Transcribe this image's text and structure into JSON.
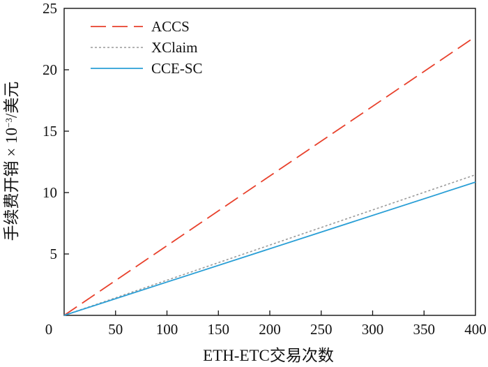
{
  "chart_data": {
    "type": "line",
    "title": "",
    "xlabel": "ETH-ETC交易次数",
    "ylabel_main": "手续费开销 × 10",
    "ylabel_exp": "−3",
    "ylabel_unit": "/美元",
    "xlim": [
      0,
      400
    ],
    "ylim": [
      0,
      25
    ],
    "xticks": [
      0,
      50,
      100,
      150,
      200,
      250,
      300,
      350,
      400
    ],
    "yticks": [
      5,
      10,
      15,
      20,
      25
    ],
    "grid": false,
    "legend_position": "top-left",
    "series": [
      {
        "name": "ACCS",
        "x": [
          0,
          400
        ],
        "y": [
          0,
          22.7
        ],
        "color": "#e8412c",
        "style": "dashed-long"
      },
      {
        "name": "XClaim",
        "x": [
          0,
          400
        ],
        "y": [
          0,
          11.45
        ],
        "color": "#9a9a9a",
        "style": "dotted"
      },
      {
        "name": "CCE-SC",
        "x": [
          0,
          400
        ],
        "y": [
          0,
          10.85
        ],
        "color": "#2a9fd6",
        "style": "solid"
      }
    ]
  }
}
